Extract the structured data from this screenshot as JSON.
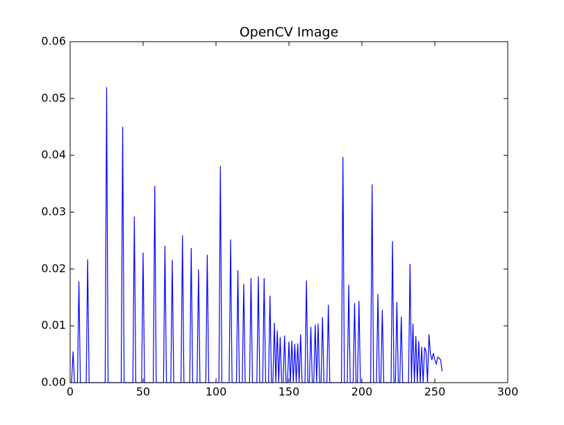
{
  "chart_data": {
    "type": "line",
    "title": "OpenCV Image",
    "x": [
      0,
      1,
      2,
      3,
      4,
      5,
      6,
      7,
      8,
      9,
      10,
      11,
      12,
      13,
      14,
      15,
      16,
      17,
      18,
      19,
      20,
      21,
      22,
      23,
      24,
      25,
      26,
      27,
      28,
      29,
      30,
      31,
      32,
      33,
      34,
      35,
      36,
      37,
      38,
      39,
      40,
      41,
      42,
      43,
      44,
      45,
      46,
      47,
      48,
      49,
      50,
      51,
      52,
      53,
      54,
      55,
      56,
      57,
      58,
      59,
      60,
      61,
      62,
      63,
      64,
      65,
      66,
      67,
      68,
      69,
      70,
      71,
      72,
      73,
      74,
      75,
      76,
      77,
      78,
      79,
      80,
      81,
      82,
      83,
      84,
      85,
      86,
      87,
      88,
      89,
      90,
      91,
      92,
      93,
      94,
      95,
      96,
      97,
      98,
      99,
      100,
      101,
      102,
      103,
      104,
      105,
      106,
      107,
      108,
      109,
      110,
      111,
      112,
      113,
      114,
      115,
      116,
      117,
      118,
      119,
      120,
      121,
      122,
      123,
      124,
      125,
      126,
      127,
      128,
      129,
      130,
      131,
      132,
      133,
      134,
      135,
      136,
      137,
      138,
      139,
      140,
      141,
      142,
      143,
      144,
      145,
      146,
      147,
      148,
      149,
      150,
      151,
      152,
      153,
      154,
      155,
      156,
      157,
      158,
      159,
      160,
      161,
      162,
      163,
      164,
      165,
      166,
      167,
      168,
      169,
      170,
      171,
      172,
      173,
      174,
      175,
      176,
      177,
      178,
      179,
      180,
      181,
      182,
      183,
      184,
      185,
      186,
      187,
      188,
      189,
      190,
      191,
      192,
      193,
      194,
      195,
      196,
      197,
      198,
      199,
      200,
      201,
      202,
      203,
      204,
      205,
      206,
      207,
      208,
      209,
      210,
      211,
      212,
      213,
      214,
      215,
      216,
      217,
      218,
      219,
      220,
      221,
      222,
      223,
      224,
      225,
      226,
      227,
      228,
      229,
      230,
      231,
      232,
      233,
      234,
      235,
      236,
      237,
      238,
      239,
      240,
      241,
      242,
      243,
      244,
      245,
      246,
      247,
      248,
      249,
      250,
      251,
      252,
      253,
      254,
      255
    ],
    "series": [
      {
        "color": "#0000ff",
        "values": [
          0,
          0,
          0.0055,
          0,
          0,
          0,
          0.0178,
          0,
          0,
          0,
          0,
          0,
          0.0217,
          0,
          0,
          0,
          0,
          0,
          0,
          0,
          0,
          0,
          0,
          0,
          0,
          0.052,
          0,
          0,
          0,
          0,
          0,
          0,
          0,
          0,
          0,
          0,
          0.045,
          0,
          0,
          0,
          0,
          0,
          0,
          0,
          0.0292,
          0,
          0,
          0,
          0,
          0,
          0.0229,
          0,
          0,
          0,
          0,
          0,
          0,
          0,
          0.0346,
          0,
          0,
          0,
          0,
          0,
          0,
          0.0241,
          0,
          0,
          0,
          0,
          0.0216,
          0,
          0,
          0,
          0,
          0,
          0,
          0.0259,
          0,
          0,
          0,
          0,
          0,
          0.0237,
          0,
          0,
          0,
          0,
          0.0199,
          0,
          0,
          0,
          0,
          0,
          0.0225,
          0,
          0,
          0,
          0,
          0,
          0,
          0,
          0,
          0.0381,
          0,
          0,
          0,
          0,
          0,
          0,
          0.0252,
          0,
          0,
          0,
          0,
          0.0198,
          0,
          0,
          0,
          0.0174,
          0,
          0,
          0,
          0,
          0.0184,
          0,
          0,
          0,
          0,
          0.0187,
          0,
          0,
          0,
          0.0184,
          0,
          0,
          0,
          0.0153,
          0,
          0,
          0.0105,
          0,
          0.0092,
          0,
          0.008,
          0,
          0,
          0.0083,
          0,
          0,
          0.0072,
          0,
          0.0074,
          0,
          0.0068,
          0,
          0.0069,
          0,
          0.0085,
          0,
          0,
          0,
          0.018,
          0,
          0,
          0.0098,
          0,
          0,
          0.0102,
          0,
          0.0104,
          0,
          0,
          0.0115,
          0,
          0,
          0,
          0.0137,
          0,
          0,
          0,
          0,
          0,
          0,
          0,
          0,
          0,
          0.0397,
          0,
          0,
          0,
          0.0172,
          0,
          0,
          0,
          0.014,
          0,
          0,
          0.0144,
          0,
          0,
          0,
          0,
          0,
          0,
          0,
          0,
          0.0349,
          0,
          0,
          0,
          0.0156,
          0,
          0,
          0.0128,
          0,
          0,
          0,
          0,
          0,
          0,
          0.0249,
          0,
          0,
          0.0142,
          0,
          0,
          0.0116,
          0,
          0,
          0,
          0,
          0,
          0.0209,
          0,
          0.0104,
          0,
          0.0082,
          0,
          0.0073,
          0,
          0.0063,
          0,
          0.0062,
          0.0055,
          0,
          0.0085,
          0.005,
          0.004,
          0.0052,
          0.004,
          0.0033,
          0.0045,
          0.0043,
          0.004,
          0.002
        ]
      }
    ],
    "xlim": [
      0,
      300
    ],
    "xticks": [
      0,
      50,
      100,
      150,
      200,
      250,
      300
    ],
    "ylim": [
      0,
      0.06
    ],
    "yticks": [
      {
        "value": 0,
        "label": "0.00"
      },
      0.01,
      0.02,
      0.03,
      0.04,
      0.05,
      0.06
    ]
  }
}
